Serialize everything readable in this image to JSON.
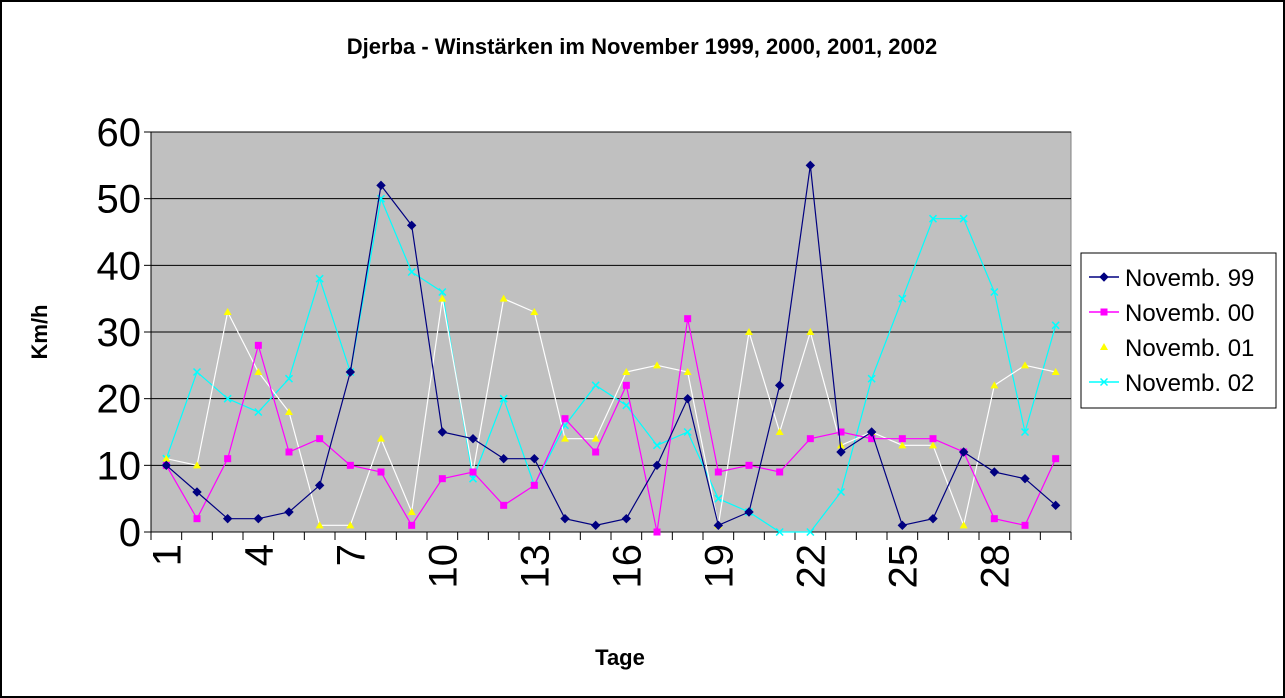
{
  "chart_data": {
    "type": "line",
    "title": "Djerba - Winstärken im November 1999, 2000, 2001, 2002",
    "xlabel": "Tage",
    "ylabel": "Km/h",
    "ylim": [
      0,
      60
    ],
    "yticks": [
      "0",
      "10",
      "20",
      "30",
      "40",
      "50",
      "60"
    ],
    "x": [
      1,
      2,
      3,
      4,
      5,
      6,
      7,
      8,
      9,
      10,
      11,
      12,
      13,
      14,
      15,
      16,
      17,
      18,
      19,
      20,
      21,
      22,
      23,
      24,
      25,
      26,
      27,
      28,
      29,
      30
    ],
    "xtick_labels": [
      "1",
      "4",
      "7",
      "10",
      "13",
      "16",
      "19",
      "22",
      "25",
      "28"
    ],
    "grid": true,
    "legend_position": "right",
    "plot_background": "#c0c0c0",
    "series": [
      {
        "name": "Novemb. 99",
        "color": "#000080",
        "marker": "diamond",
        "values": [
          10,
          6,
          2,
          2,
          3,
          7,
          24,
          52,
          46,
          15,
          14,
          11,
          11,
          2,
          1,
          2,
          10,
          20,
          1,
          3,
          22,
          55,
          12,
          15,
          1,
          2,
          12,
          9,
          8,
          4
        ]
      },
      {
        "name": "Novemb. 00",
        "color": "#ff00ff",
        "marker": "square",
        "values": [
          10,
          2,
          11,
          28,
          12,
          14,
          10,
          9,
          1,
          8,
          9,
          4,
          7,
          17,
          12,
          22,
          0,
          32,
          9,
          10,
          9,
          14,
          15,
          14,
          14,
          14,
          12,
          2,
          1,
          11
        ]
      },
      {
        "name": "Novemb. 01",
        "color": "#ffff00",
        "marker": "triangle",
        "values": [
          11,
          10,
          33,
          24,
          18,
          1,
          1,
          14,
          3,
          35,
          9,
          35,
          33,
          14,
          14,
          24,
          25,
          24,
          1,
          30,
          15,
          30,
          13,
          15,
          13,
          13,
          1,
          22,
          25,
          24
        ]
      },
      {
        "name": "Novemb. 02",
        "color": "#00ffff",
        "marker": "x",
        "values": [
          11,
          24,
          20,
          18,
          23,
          38,
          24,
          50,
          39,
          36,
          8,
          20,
          7,
          16,
          22,
          19,
          13,
          15,
          5,
          3,
          0,
          0,
          6,
          23,
          35,
          47,
          47,
          36,
          15,
          31
        ]
      }
    ]
  }
}
